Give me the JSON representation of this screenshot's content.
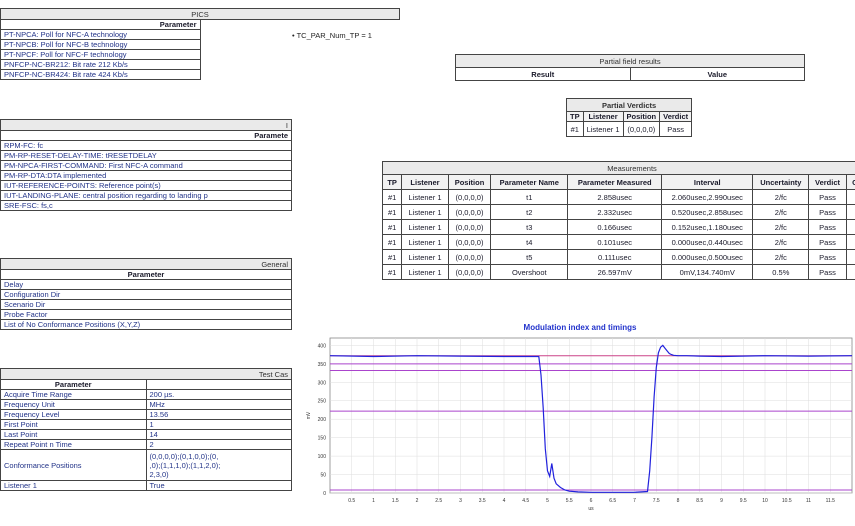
{
  "pics": {
    "title": "PICS",
    "header": "Parameter",
    "rows": [
      "PT-NPCA: Poll for NFC-A technology",
      "PT-NPCB: Poll for NFC-B technology",
      "PT-NPCF: Poll for NFC-F technology",
      "PNFCP-NC-BR212: Bit rate 212 Kb/s",
      "PNFCP-NC-BR424: Bit rate 424 Kb/s"
    ]
  },
  "tc_label": "TC_PAR_Num_TP = 1",
  "implicit": {
    "title": "I",
    "header": "Paramete",
    "rows": [
      "RPM-FC: fc",
      "PM-RP-RESET-DELAY-TIME: tRESETDELAY",
      "PM-NPCA-FIRST-COMMAND: First NFC-A command",
      "PM-RP-DTA:DTA implemented",
      "IUT-REFERENCE-POINTS: Reference point(s)",
      "IUT-LANDING-PLANE: central position regarding to landing p",
      "SRE-FSC: fs,c"
    ]
  },
  "general": {
    "title": "General",
    "header": "Parameter",
    "rows": [
      "Delay",
      "Configuration Dir",
      "Scenario Dir",
      "Probe Factor",
      "List of No Conformance Positions (X,Y,Z)"
    ]
  },
  "test_case": {
    "title": "Test Cas",
    "header": "Parameter",
    "rows": [
      {
        "p": "Acquire Time Range",
        "v": "200 µs."
      },
      {
        "p": "Frequency Unit",
        "v": "MHz"
      },
      {
        "p": "Frequency Level",
        "v": "13.56"
      },
      {
        "p": "First Point",
        "v": "1"
      },
      {
        "p": "Last Point",
        "v": "14"
      },
      {
        "p": "Repeat Point n Time",
        "v": "2"
      },
      {
        "p": "Conformance Positions",
        "v1": "(0,0,0,0);(0,1,0,0);(0,",
        "v2": ",0);(1,1,1,0);(1,1,2,0);",
        "v3": "2,3,0)"
      },
      {
        "p": "Listener 1",
        "v": "True"
      }
    ]
  },
  "partial_field": {
    "title": "Partial field results",
    "col_result": "Result",
    "col_value": "Value"
  },
  "partial_verdicts": {
    "title": "Partial Verdicts",
    "headers": [
      "TP",
      "Listener",
      "Position",
      "Verdict"
    ],
    "row": [
      "#1",
      "Listener 1",
      "(0,0,0,0)",
      "Pass"
    ]
  },
  "measurements": {
    "title": "Measurements",
    "headers": [
      "TP",
      "Listener",
      "Position",
      "Parameter Name",
      "Parameter Measured",
      "Interval",
      "Uncertainty",
      "Verdict",
      "Comm"
    ],
    "rows": [
      [
        "#1",
        "Listener 1",
        "(0,0,0,0)",
        "t1",
        "2.858usec",
        "2.060usec,2.990usec",
        "2/fc",
        "Pass",
        "-"
      ],
      [
        "#1",
        "Listener 1",
        "(0,0,0,0)",
        "t2",
        "2.332usec",
        "0.520usec,2.858usec",
        "2/fc",
        "Pass",
        "-"
      ],
      [
        "#1",
        "Listener 1",
        "(0,0,0,0)",
        "t3",
        "0.166usec",
        "0.152usec,1.180usec",
        "2/fc",
        "Pass",
        "-"
      ],
      [
        "#1",
        "Listener 1",
        "(0,0,0,0)",
        "t4",
        "0.101usec",
        "0.000usec,0.440usec",
        "2/fc",
        "Pass",
        "-"
      ],
      [
        "#1",
        "Listener 1",
        "(0,0,0,0)",
        "t5",
        "0.111usec",
        "0.000usec,0.500usec",
        "2/fc",
        "Pass",
        "-"
      ],
      [
        "#1",
        "Listener 1",
        "(0,0,0,0)",
        "Overshoot",
        "26.597mV",
        "0mV,134.740mV",
        "0.5%",
        "Pass",
        "-"
      ]
    ]
  },
  "chart_data": {
    "type": "line",
    "title": "Modulation index and timings",
    "xlabel": "us",
    "ylabel": "mV",
    "xlim": [
      0,
      12
    ],
    "ylim": [
      0,
      420
    ],
    "x_ticks": [
      "0.5",
      "1",
      "1.5",
      "2",
      "2.5",
      "3",
      "3.5",
      "4",
      "4.5",
      "5",
      "5.5",
      "6",
      "6.5",
      "7",
      "7.5",
      "8",
      "8.5",
      "9",
      "9.5",
      "10",
      "10.5",
      "11",
      "11.5"
    ],
    "y_ticks": [
      0,
      50,
      100,
      150,
      200,
      250,
      300,
      350,
      400
    ],
    "reference_lines": [
      {
        "y": 372,
        "color": "#cc4488"
      },
      {
        "y": 350,
        "color": "#aa44cc"
      },
      {
        "y": 332,
        "color": "#aa44cc"
      },
      {
        "y": 222,
        "color": "#aa44cc"
      },
      {
        "y": 8,
        "color": "#aa44cc"
      }
    ],
    "series": [
      {
        "color": "#2222dd",
        "x": [
          0,
          1,
          2,
          3,
          4,
          4.8,
          4.85,
          4.9,
          4.95,
          5.0,
          5.05,
          5.1,
          5.15,
          5.2,
          5.3,
          5.4,
          5.5,
          5.7,
          6.0,
          6.5,
          7.0,
          7.3,
          7.35,
          7.4,
          7.45,
          7.5,
          7.55,
          7.6,
          7.65,
          7.7,
          7.75,
          7.8,
          7.85,
          7.9,
          8.0,
          8.2,
          8.5,
          9,
          10,
          11,
          12
        ],
        "y": [
          372,
          370,
          372,
          371,
          370,
          370,
          320,
          230,
          120,
          60,
          45,
          80,
          40,
          25,
          15,
          8,
          5,
          3,
          2,
          2,
          2,
          4,
          60,
          150,
          260,
          340,
          380,
          395,
          400,
          392,
          385,
          378,
          375,
          373,
          372,
          372,
          371,
          370,
          372,
          371,
          372
        ]
      }
    ]
  }
}
